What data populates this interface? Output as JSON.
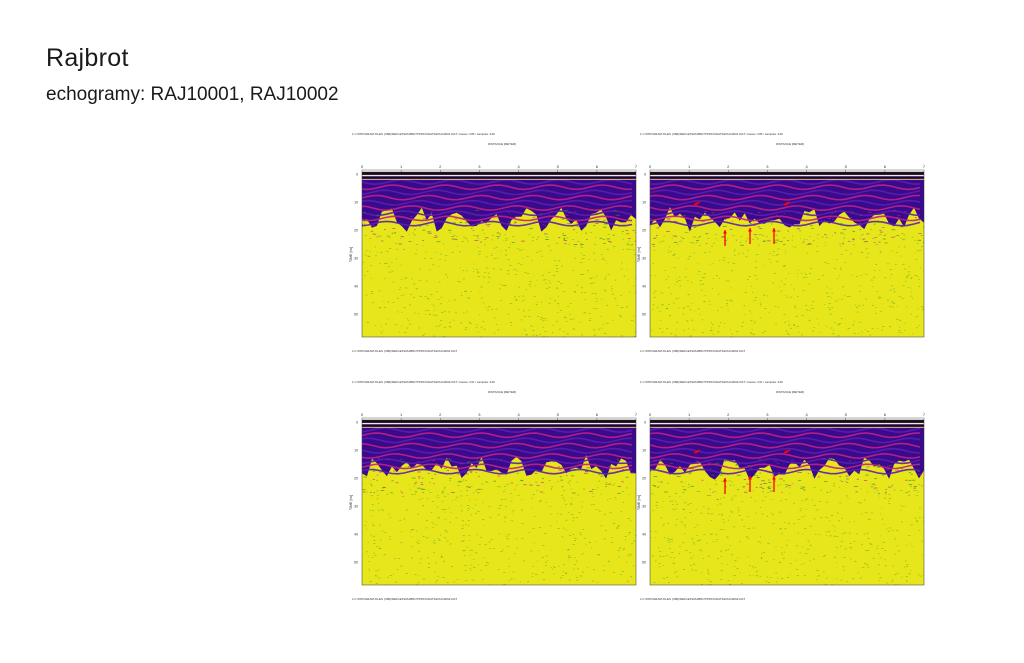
{
  "slide": {
    "title": "Rajbrot",
    "subtitle": "echogramy: RAJ10001, RAJ10002"
  },
  "colors": {
    "bg_top": "#3a0a8c",
    "band_violet": "#5a1fb0",
    "band_magenta": "#c0208a",
    "bottom_yellow": "#e6e61a",
    "speckle_green": "#2a8a2a",
    "arrow_red": "#ff0000"
  },
  "panels": [
    {
      "header": "1 C:\\PROGRAM FILES (X86)\\REFLEX\\RAJBROT\\PROCDATA\\RAJ10001.DAT  / traces: 235 / samples: 449",
      "dist_label": "DISTANCE [METER]",
      "footer": "2 C:\\PROGRAM FILES (X86)\\REFLEX\\RAJBROT\\PROCDATA\\RAJ10001.DAT",
      "ylabel": "TIME [ns]",
      "xticks": [
        "0",
        "1",
        "2",
        "3",
        "4",
        "5",
        "6",
        "7"
      ],
      "yticks": [
        "0",
        "10",
        "20",
        "30",
        "40",
        "50"
      ],
      "arrows": false
    },
    {
      "header": "1 C:\\PROGRAM FILES (X86)\\REFLEX\\RAJBROT\\PROCDATA\\RAJ10001.DAT  / traces: 235 / samples: 449",
      "dist_label": "DISTANCE [METER]",
      "footer": "2 C:\\PROGRAM FILES (X86)\\REFLEX\\RAJBROT\\PROCDATA\\RAJ10001.DAT",
      "ylabel": "TIME [ns]",
      "xticks": [
        "0",
        "1",
        "2",
        "3",
        "4",
        "5",
        "6",
        "7"
      ],
      "yticks": [
        "0",
        "10",
        "20",
        "30",
        "40",
        "50"
      ],
      "arrows": true
    },
    {
      "header": "1 C:\\PROGRAM FILES (X86)\\REFLEX\\RAJBROT\\PROCDATA\\RAJ10002.DAT  / traces: 241 / samples: 449",
      "dist_label": "DISTANCE [METER]",
      "footer": "2 C:\\PROGRAM FILES (X86)\\REFLEX\\RAJBROT\\PROCDATA\\RAJ10002.DAT",
      "ylabel": "TIME [ns]",
      "xticks": [
        "0",
        "1",
        "2",
        "3",
        "4",
        "5",
        "6",
        "7"
      ],
      "yticks": [
        "0",
        "10",
        "20",
        "30",
        "40",
        "50"
      ],
      "arrows": false
    },
    {
      "header": "1 C:\\PROGRAM FILES (X86)\\REFLEX\\RAJBROT\\PROCDATA\\RAJ10002.DAT  / traces: 241 / samples: 449",
      "dist_label": "DISTANCE [METER]",
      "footer": "2 C:\\PROGRAM FILES (X86)\\REFLEX\\RAJBROT\\PROCDATA\\RAJ10002.DAT",
      "ylabel": "TIME [ns]",
      "xticks": [
        "0",
        "1",
        "2",
        "3",
        "4",
        "5",
        "6",
        "7"
      ],
      "yticks": [
        "0",
        "10",
        "20",
        "30",
        "40",
        "50"
      ],
      "arrows": true
    }
  ]
}
